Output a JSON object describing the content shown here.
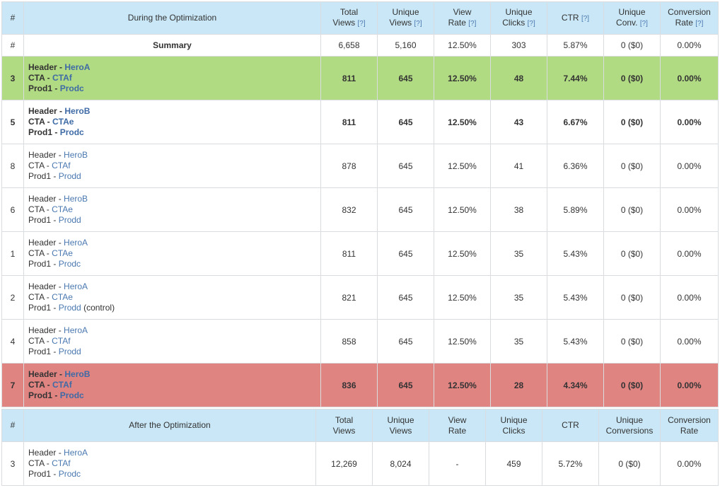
{
  "during": {
    "headers": {
      "num": "#",
      "name": "During the Optimization",
      "total_views": [
        "Total",
        "Views"
      ],
      "unique_views": [
        "Unique",
        "Views"
      ],
      "view_rate": [
        "View",
        "Rate"
      ],
      "unique_clicks": [
        "Unique",
        "Clicks"
      ],
      "ctr": "CTR",
      "unique_conv": [
        "Unique",
        "Conv."
      ],
      "conversion_rate": [
        "Conversion",
        "Rate"
      ],
      "help": "[?]"
    },
    "summary": {
      "num": "#",
      "label": "Summary",
      "total_views": "6,658",
      "unique_views": "5,160",
      "view_rate": "12.50%",
      "unique_clicks": "303",
      "ctr": "5.87%",
      "unique_conv": "0 ($0)",
      "conversion_rate": "0.00%"
    },
    "rows": [
      {
        "num": "3",
        "header": "HeroA",
        "cta": "CTAf",
        "prod": "Prodc",
        "suffix": "",
        "total_views": "811",
        "unique_views": "645",
        "view_rate": "12.50%",
        "unique_clicks": "48",
        "ctr": "7.44%",
        "unique_conv": "0 ($0)",
        "conversion_rate": "0.00%",
        "style": "win"
      },
      {
        "num": "5",
        "header": "HeroB",
        "cta": "CTAe",
        "prod": "Prodc",
        "suffix": "",
        "total_views": "811",
        "unique_views": "645",
        "view_rate": "12.50%",
        "unique_clicks": "43",
        "ctr": "6.67%",
        "unique_conv": "0 ($0)",
        "conversion_rate": "0.00%",
        "style": "bold"
      },
      {
        "num": "8",
        "header": "HeroB",
        "cta": "CTAf",
        "prod": "Prodd",
        "suffix": "",
        "total_views": "878",
        "unique_views": "645",
        "view_rate": "12.50%",
        "unique_clicks": "41",
        "ctr": "6.36%",
        "unique_conv": "0 ($0)",
        "conversion_rate": "0.00%",
        "style": "plain"
      },
      {
        "num": "6",
        "header": "HeroB",
        "cta": "CTAe",
        "prod": "Prodd",
        "suffix": "",
        "total_views": "832",
        "unique_views": "645",
        "view_rate": "12.50%",
        "unique_clicks": "38",
        "ctr": "5.89%",
        "unique_conv": "0 ($0)",
        "conversion_rate": "0.00%",
        "style": "plain"
      },
      {
        "num": "1",
        "header": "HeroA",
        "cta": "CTAe",
        "prod": "Prodc",
        "suffix": "",
        "total_views": "811",
        "unique_views": "645",
        "view_rate": "12.50%",
        "unique_clicks": "35",
        "ctr": "5.43%",
        "unique_conv": "0 ($0)",
        "conversion_rate": "0.00%",
        "style": "plain"
      },
      {
        "num": "2",
        "header": "HeroA",
        "cta": "CTAe",
        "prod": "Prodd",
        "suffix": " (control)",
        "total_views": "821",
        "unique_views": "645",
        "view_rate": "12.50%",
        "unique_clicks": "35",
        "ctr": "5.43%",
        "unique_conv": "0 ($0)",
        "conversion_rate": "0.00%",
        "style": "plain"
      },
      {
        "num": "4",
        "header": "HeroA",
        "cta": "CTAf",
        "prod": "Prodd",
        "suffix": "",
        "total_views": "858",
        "unique_views": "645",
        "view_rate": "12.50%",
        "unique_clicks": "35",
        "ctr": "5.43%",
        "unique_conv": "0 ($0)",
        "conversion_rate": "0.00%",
        "style": "plain"
      },
      {
        "num": "7",
        "header": "HeroB",
        "cta": "CTAf",
        "prod": "Prodc",
        "suffix": "",
        "total_views": "836",
        "unique_views": "645",
        "view_rate": "12.50%",
        "unique_clicks": "28",
        "ctr": "4.34%",
        "unique_conv": "0 ($0)",
        "conversion_rate": "0.00%",
        "style": "lose"
      }
    ]
  },
  "after": {
    "headers": {
      "num": "#",
      "name": "After the Optimization",
      "total_views": [
        "Total",
        "Views"
      ],
      "unique_views": [
        "Unique",
        "Views"
      ],
      "view_rate": [
        "View",
        "Rate"
      ],
      "unique_clicks": [
        "Unique",
        "Clicks"
      ],
      "ctr": "CTR",
      "unique_conv": [
        "Unique",
        "Conversions"
      ],
      "conversion_rate": [
        "Conversion",
        "Rate"
      ]
    },
    "rows": [
      {
        "num": "3",
        "header": "HeroA",
        "cta": "CTAf",
        "prod": "Prodc",
        "total_views": "12,269",
        "unique_views": "8,024",
        "view_rate": "-",
        "unique_clicks": "459",
        "ctr": "5.72%",
        "unique_conv": "0 ($0)",
        "conversion_rate": "0.00%"
      }
    ]
  },
  "labels": {
    "header": "Header",
    "cta": "CTA",
    "prod": "Prod1",
    "sep": " - "
  },
  "colors": {
    "header_bg": "#c9e7f6",
    "winner_bg": "#b1db82",
    "loser_bg": "#e08482",
    "link": "#4a78b0",
    "unique_clicks_header": "#5ab85a"
  }
}
